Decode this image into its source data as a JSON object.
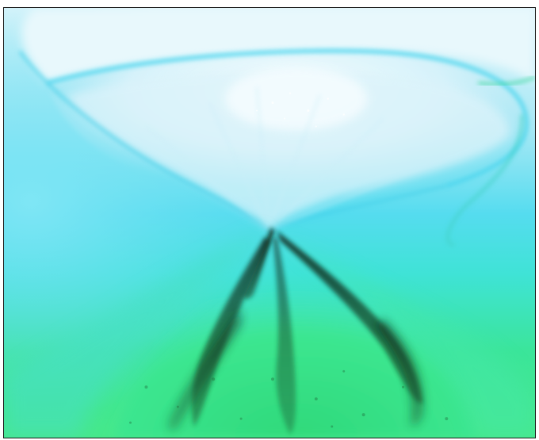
{
  "image": {
    "palette": {
      "upper_light": "#e4f7fb",
      "upper_mid": "#bfeaf6",
      "cyan": "#4ddcf0",
      "aqua": "#40e6d8",
      "green": "#3ee88e",
      "dark_streak": "#0f2a18",
      "outline": "#1a1a1a"
    }
  }
}
